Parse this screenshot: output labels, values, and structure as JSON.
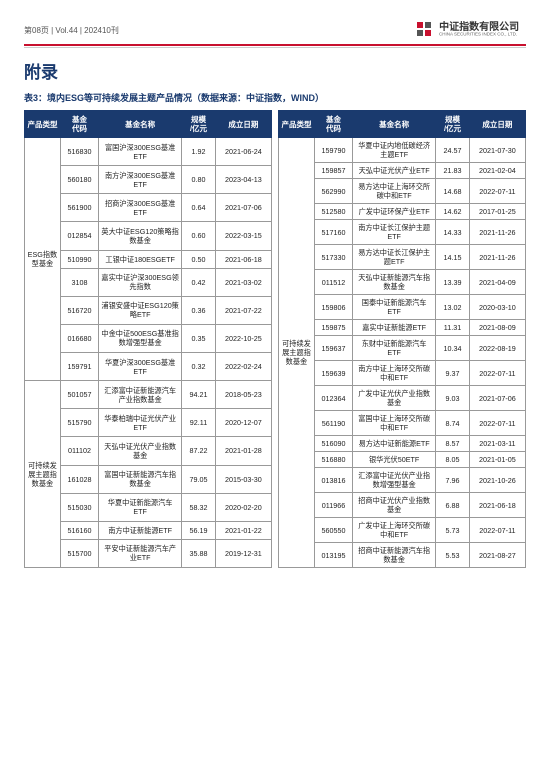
{
  "header": {
    "page_meta": "第08页  |  Vol.44  |  202410刊",
    "company_cn": "中证指数有限公司",
    "company_en": "CHINA SECURITIES INDEX CO., LTD."
  },
  "title": "附录",
  "caption": "表3：境内ESG等可持续发展主题产品情况（数据来源：中证指数，WIND）",
  "table": {
    "headers": {
      "type": "产品类型",
      "code": "基金\n代码",
      "name": "基金名称",
      "size": "规模\n/亿元",
      "date": "成立日期"
    }
  },
  "left": {
    "groups": [
      {
        "category": "ESG指数型基金",
        "rows": [
          {
            "code": "516830",
            "name": "富国沪深300ESG基准ETF",
            "size": "1.92",
            "date": "2021-06-24"
          },
          {
            "code": "560180",
            "name": "南方沪深300ESG基准ETF",
            "size": "0.80",
            "date": "2023-04-13"
          },
          {
            "code": "561900",
            "name": "招商沪深300ESG基准ETF",
            "size": "0.64",
            "date": "2021-07-06"
          },
          {
            "code": "012854",
            "name": "英大中证ESG120策略指数基金",
            "size": "0.60",
            "date": "2022-03-15"
          },
          {
            "code": "510990",
            "name": "工银中证180ESGETF",
            "size": "0.50",
            "date": "2021-06-18"
          },
          {
            "code": "3108",
            "name": "嘉实中证沪深300ESG领先指数",
            "size": "0.42",
            "date": "2021-03-02"
          },
          {
            "code": "516720",
            "name": "浦银安盛中证ESG120策略ETF",
            "size": "0.36",
            "date": "2021-07-22"
          },
          {
            "code": "016680",
            "name": "中金中证500ESG基准指数增强型基金",
            "size": "0.35",
            "date": "2022-10-25"
          },
          {
            "code": "159791",
            "name": "华夏沪深300ESG基准ETF",
            "size": "0.32",
            "date": "2022-02-24"
          }
        ]
      },
      {
        "category": "可持续发展主题指数基金",
        "rows": [
          {
            "code": "501057",
            "name": "汇添富中证新能源汽车产业指数基金",
            "size": "94.21",
            "date": "2018-05-23"
          },
          {
            "code": "515790",
            "name": "华泰柏瑞中证光伏产业ETF",
            "size": "92.11",
            "date": "2020-12-07"
          },
          {
            "code": "011102",
            "name": "天弘中证光伏产业指数基金",
            "size": "87.22",
            "date": "2021-01-28"
          },
          {
            "code": "161028",
            "name": "富国中证新能源汽车指数基金",
            "size": "79.05",
            "date": "2015-03-30"
          },
          {
            "code": "515030",
            "name": "华夏中证新能源汽车ETF",
            "size": "58.32",
            "date": "2020-02-20"
          },
          {
            "code": "516160",
            "name": "南方中证新能源ETF",
            "size": "56.19",
            "date": "2021-01-22"
          },
          {
            "code": "515700",
            "name": "平安中证新能源汽车产业ETF",
            "size": "35.88",
            "date": "2019-12-31"
          }
        ]
      }
    ]
  },
  "right": {
    "groups": [
      {
        "category": "可持续发展主题指数基金",
        "rows": [
          {
            "code": "159790",
            "name": "华夏中证内地低碳经济主题ETF",
            "size": "24.57",
            "date": "2021-07-30"
          },
          {
            "code": "159857",
            "name": "天弘中证光伏产业ETF",
            "size": "21.83",
            "date": "2021-02-04"
          },
          {
            "code": "562990",
            "name": "易方达中证上海环交所碳中和ETF",
            "size": "14.68",
            "date": "2022-07-11"
          },
          {
            "code": "512580",
            "name": "广发中证环保产业ETF",
            "size": "14.62",
            "date": "2017-01-25"
          },
          {
            "code": "517160",
            "name": "南方中证长江保护主题ETF",
            "size": "14.33",
            "date": "2021-11-26"
          },
          {
            "code": "517330",
            "name": "易方达中证长江保护主题ETF",
            "size": "14.15",
            "date": "2021-11-26"
          },
          {
            "code": "011512",
            "name": "天弘中证新能源汽车指数基金",
            "size": "13.39",
            "date": "2021-04-09"
          },
          {
            "code": "159806",
            "name": "国泰中证新能源汽车ETF",
            "size": "13.02",
            "date": "2020-03-10"
          },
          {
            "code": "159875",
            "name": "嘉实中证新能源ETF",
            "size": "11.31",
            "date": "2021-08-09"
          },
          {
            "code": "159637",
            "name": "东财中证新能源汽车ETF",
            "size": "10.34",
            "date": "2022-08-19"
          },
          {
            "code": "159639",
            "name": "南方中证上海环交所碳中和ETF",
            "size": "9.37",
            "date": "2022-07-11"
          },
          {
            "code": "012364",
            "name": "广发中证光伏产业指数基金",
            "size": "9.03",
            "date": "2021-07-06"
          },
          {
            "code": "561190",
            "name": "富国中证上海环交所碳中和ETF",
            "size": "8.74",
            "date": "2022-07-11"
          },
          {
            "code": "516090",
            "name": "易方达中证新能源ETF",
            "size": "8.57",
            "date": "2021-03-11"
          },
          {
            "code": "516880",
            "name": "银华光伏50ETF",
            "size": "8.05",
            "date": "2021-01-05"
          },
          {
            "code": "013816",
            "name": "汇添富中证光伏产业指数增强型基金",
            "size": "7.96",
            "date": "2021-10-26"
          },
          {
            "code": "011966",
            "name": "招商中证光伏产业指数基金",
            "size": "6.88",
            "date": "2021-06-18"
          },
          {
            "code": "560550",
            "name": "广发中证上海环交所碳中和ETF",
            "size": "5.73",
            "date": "2022-07-11"
          },
          {
            "code": "013195",
            "name": "招商中证新能源汽车指数基金",
            "size": "5.53",
            "date": "2021-08-27"
          }
        ]
      }
    ]
  }
}
